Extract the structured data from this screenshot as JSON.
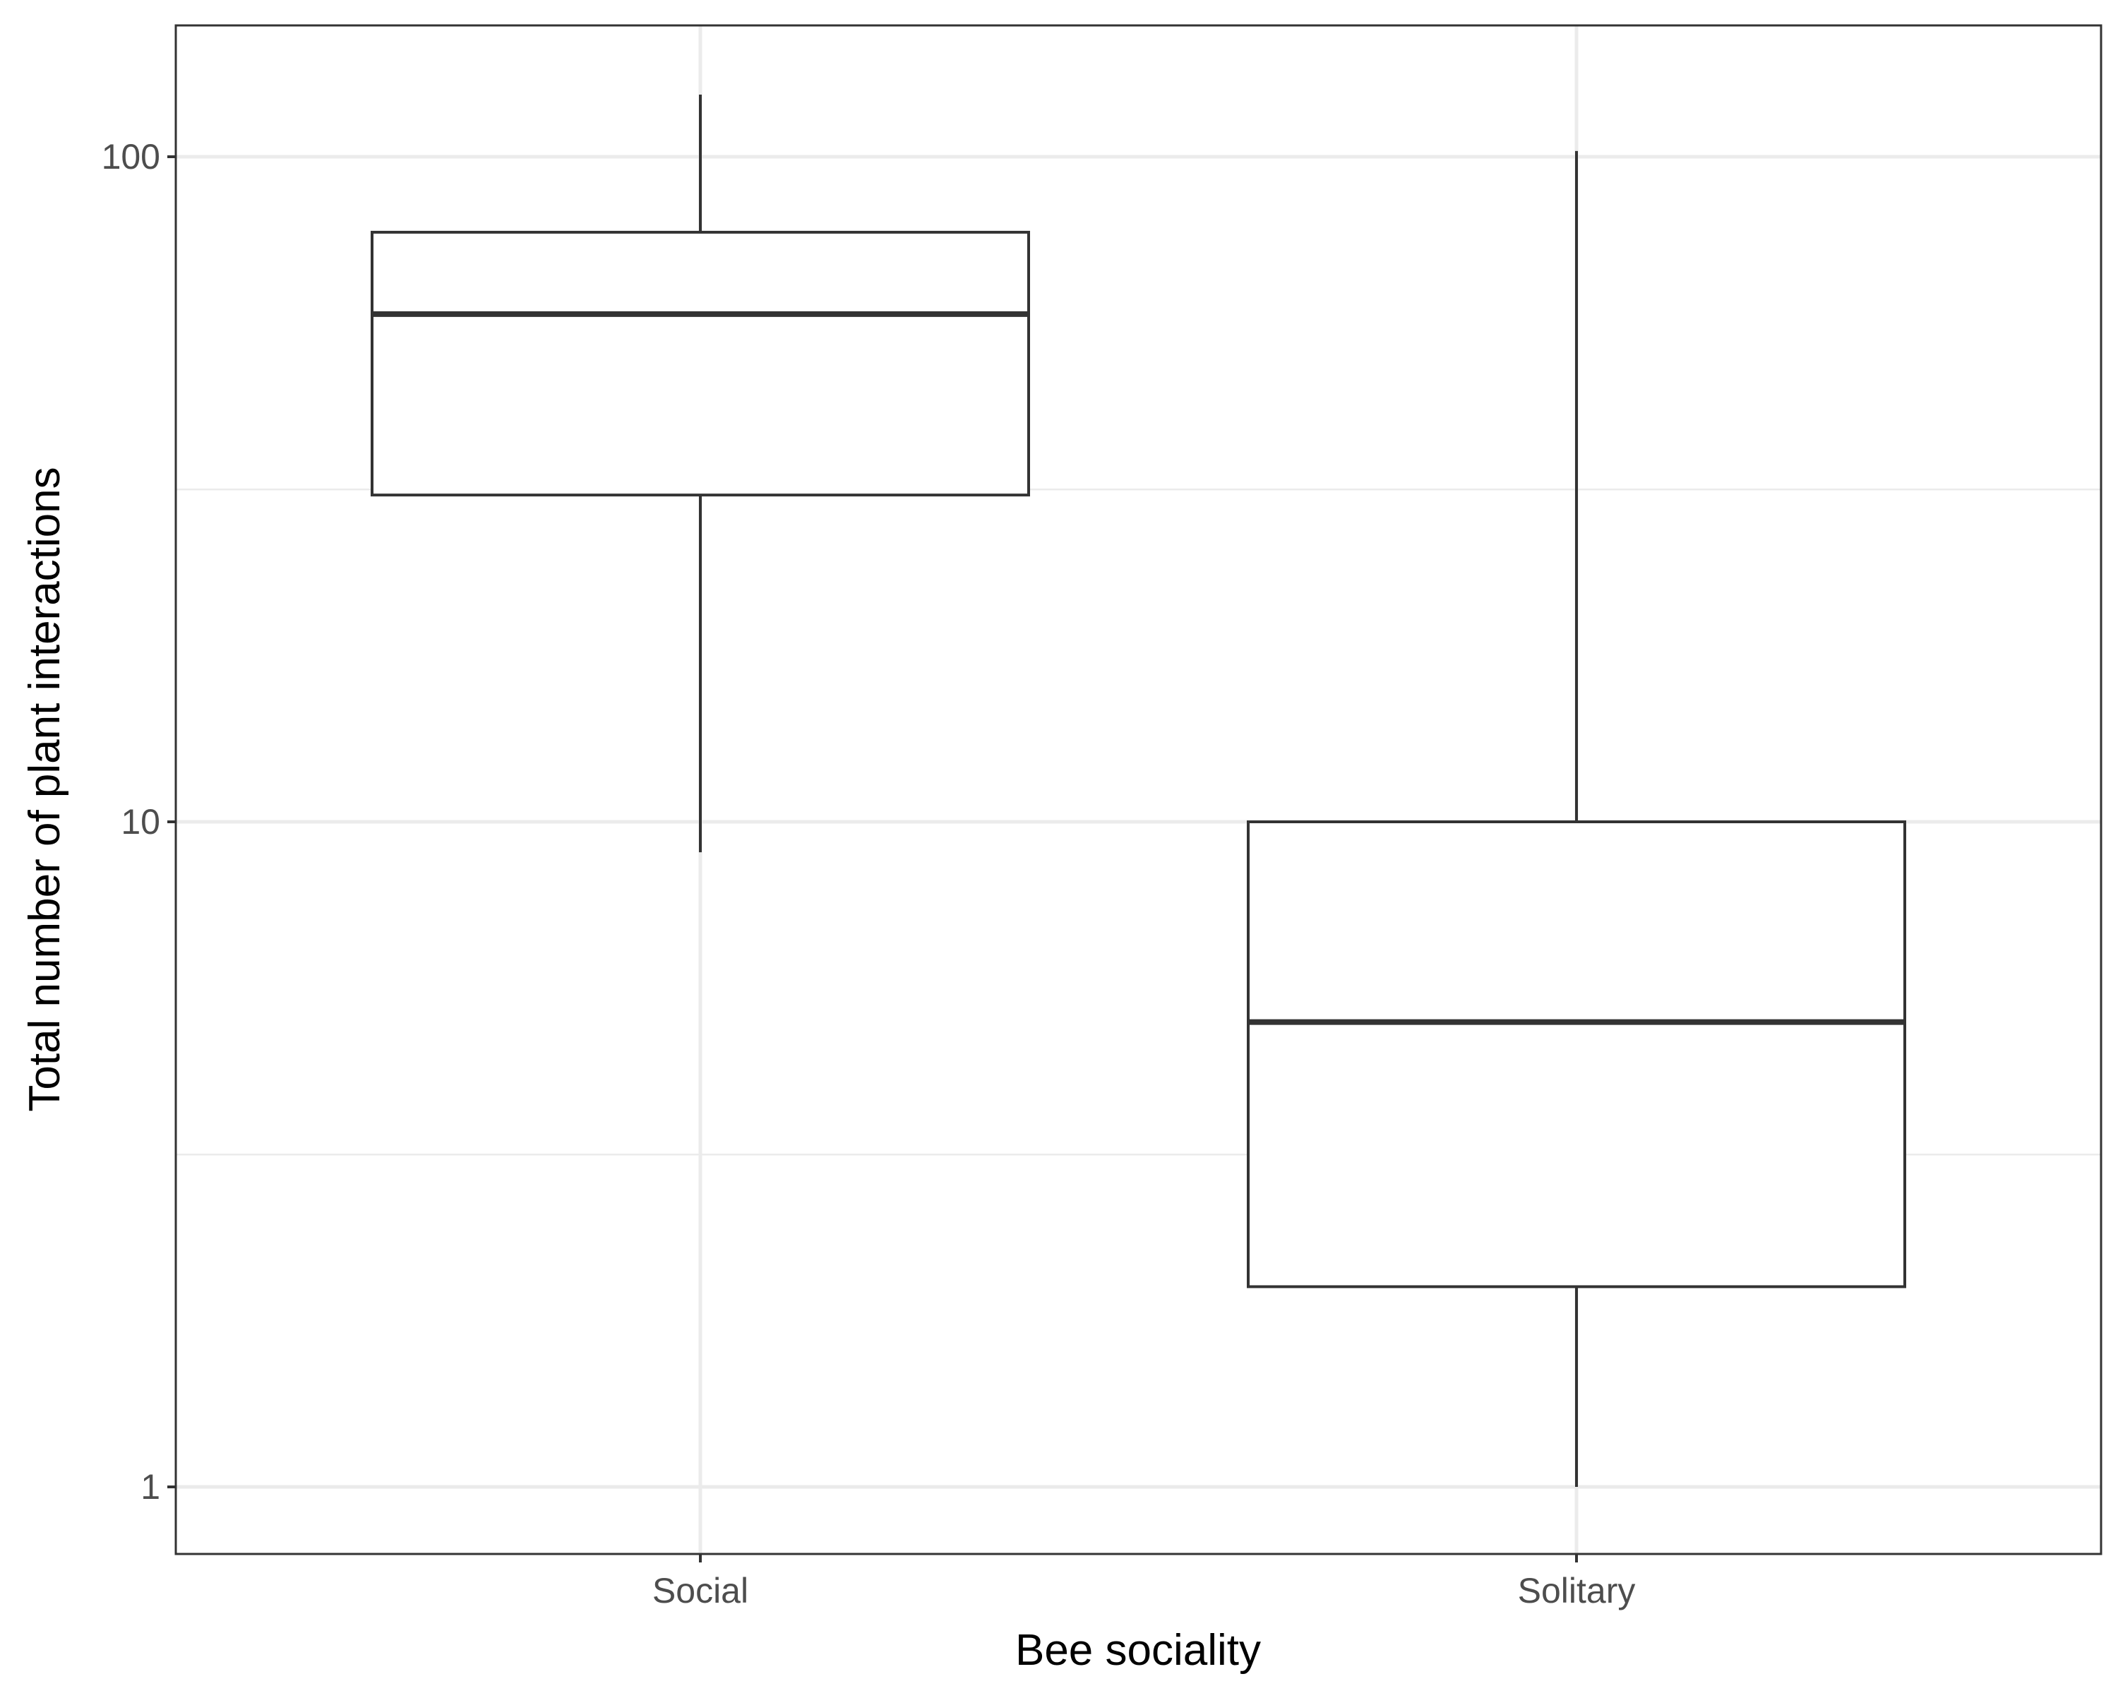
{
  "chart_data": {
    "type": "box",
    "title": "",
    "xlabel": "Bee sociality",
    "ylabel": "Total number of plant interactions",
    "y_scale": "log10",
    "ylim": [
      0.8,
      160
    ],
    "y_ticks": [
      1,
      10,
      100
    ],
    "y_tick_labels": [
      "1",
      "10",
      "100"
    ],
    "y_minor_ticks": [
      3.16,
      31.6
    ],
    "grid": true,
    "categories": [
      "Social",
      "Solitary"
    ],
    "boxes": [
      {
        "category": "Social",
        "whisker_low": 9,
        "q1": 31,
        "median": 58,
        "q3": 77,
        "whisker_high": 124
      },
      {
        "category": "Solitary",
        "whisker_low": 1,
        "q1": 2,
        "median": 5,
        "q3": 10,
        "whisker_high": 102
      }
    ]
  }
}
